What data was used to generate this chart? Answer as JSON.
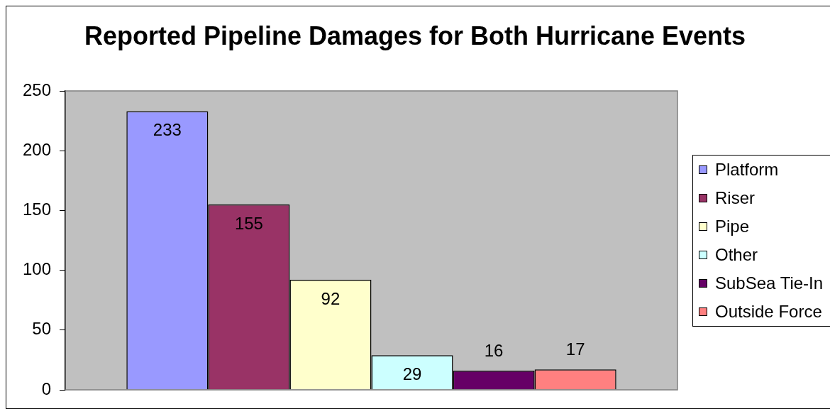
{
  "chart_data": {
    "type": "bar",
    "title": "Reported Pipeline Damages for Both Hurricane Events",
    "categories": [
      null
    ],
    "series": [
      {
        "name": "Platform",
        "color": "#9999ff",
        "values": [
          233
        ]
      },
      {
        "name": "Riser",
        "color": "#993366",
        "values": [
          155
        ]
      },
      {
        "name": "Pipe",
        "color": "#ffffcc",
        "values": [
          92
        ]
      },
      {
        "name": "Other",
        "color": "#ccffff",
        "values": [
          29
        ]
      },
      {
        "name": "SubSea Tie-In",
        "color": "#660066",
        "values": [
          16
        ]
      },
      {
        "name": "Outside Force",
        "color": "#ff8080",
        "values": [
          17
        ]
      }
    ],
    "ylim": [
      0,
      250
    ],
    "yticks": [
      0,
      50,
      100,
      150,
      200,
      250
    ],
    "grid": false,
    "legend": "right",
    "data_labels": true
  }
}
